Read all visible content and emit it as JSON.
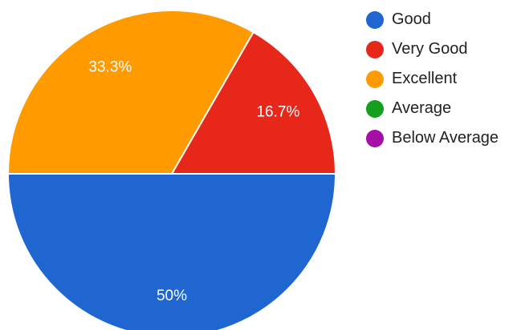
{
  "chart_data": {
    "type": "pie",
    "slices": [
      {
        "name": "Good",
        "value": 50,
        "label": "50%",
        "color": "#1F66D1"
      },
      {
        "name": "Very Good",
        "value": 16.7,
        "label": "16.7%",
        "color": "#E8271B"
      },
      {
        "name": "Excellent",
        "value": 33.3,
        "label": "33.3%",
        "color": "#FF9B00"
      },
      {
        "name": "Average",
        "value": 0,
        "label": "",
        "color": "#12A01D"
      },
      {
        "name": "Below Average",
        "value": 0,
        "label": "",
        "color": "#A50FA5"
      }
    ],
    "legend_position": "right"
  }
}
